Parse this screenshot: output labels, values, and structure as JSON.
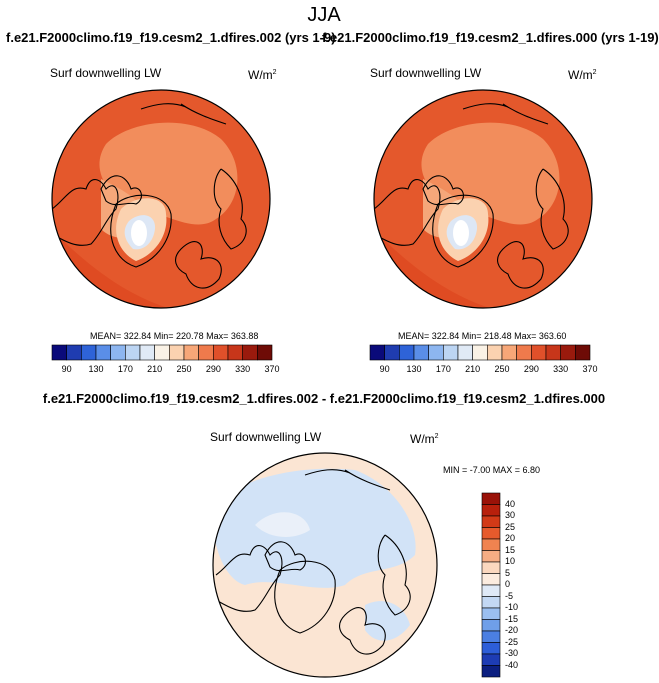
{
  "title": "JJA",
  "panels": [
    {
      "case_title": "f.e21.F2000climo.f19_f19.cesm2_1.dfires.002 (yrs 1-9)",
      "variable": "Surf downwelling LW",
      "units": "W/m",
      "units_sup": "2",
      "stats": "MEAN= 322.84  Min= 220.78  Max= 363.88"
    },
    {
      "case_title": "f.e21.F2000climo.f19_f19.cesm2_1.dfires.000 (yrs 1-19)",
      "variable": "Surf downwelling LW",
      "units": "W/m",
      "units_sup": "2",
      "stats": "MEAN= 322.84  Min= 218.48  Max= 363.60"
    }
  ],
  "abs_colorbar": {
    "colors": [
      "#0a0a7a",
      "#1f3cb0",
      "#2e63d8",
      "#5a8ee8",
      "#8db6f0",
      "#bcd5f3",
      "#e0eaf6",
      "#faf2e6",
      "#fbd2b0",
      "#f7a778",
      "#ef7a4c",
      "#e0502a",
      "#c7361a",
      "#9a1a0d",
      "#6e0b06"
    ],
    "ticks": [
      "90",
      "130",
      "170",
      "210",
      "250",
      "290",
      "330",
      "370"
    ]
  },
  "diff": {
    "title": "f.e21.F2000climo.f19_f19.cesm2_1.dfires.002 - f.e21.F2000climo.f19_f19.cesm2_1.dfires.000",
    "variable": "Surf downwelling LW",
    "units": "W/m",
    "units_sup": "2",
    "stats": "MIN = -7.00 MAX =  6.80",
    "colorbar": {
      "colors": [
        "#9a1208",
        "#b8200c",
        "#d23a17",
        "#e65a2c",
        "#f08350",
        "#f6ad84",
        "#fbd8bf",
        "#fcecdf",
        "#dfe9f6",
        "#c3d8f3",
        "#9bbff0",
        "#6f9fe9",
        "#4b7fe2",
        "#2d5ed8",
        "#1d3cb4",
        "#0c1f80"
      ],
      "ticks": [
        "40",
        "30",
        "25",
        "20",
        "15",
        "10",
        "5",
        "0",
        "-5",
        "-10",
        "-15",
        "-20",
        "-25",
        "-30",
        "-40"
      ]
    }
  },
  "map_colors": {
    "ocean_field": "#e4582c",
    "warm_field": "#df4b22",
    "arctic_field": "#f28d5c",
    "mid_field": "#f5a77a",
    "greenland_mid": "#fbd2b0",
    "greenland_low": "#dde7f5",
    "greenland_core": "#ffffff",
    "diff_base": "#fbe5d3",
    "diff_blue": "#d2e3f7",
    "diff_pale": "#eaf0f9",
    "coast": "#000000"
  }
}
